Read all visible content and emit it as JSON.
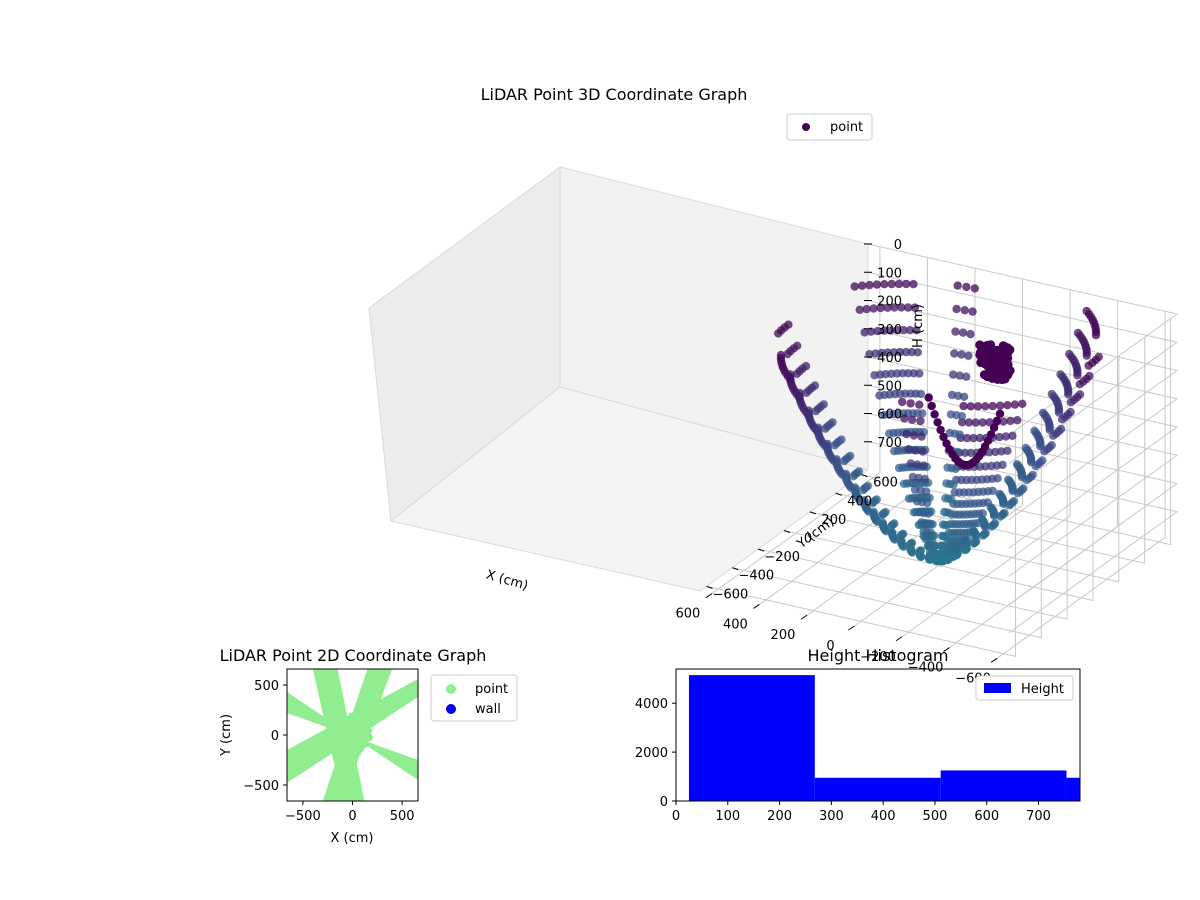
{
  "colors": {
    "point_dark": "#440154",
    "point_mid": "#3b528b",
    "point_low": "#21918c",
    "scatter2d_point": "#90ee90",
    "scatter2d_wall": "#0000ff",
    "hist_bar": "#0000ff"
  },
  "chart_data": [
    {
      "type": "scatter",
      "projection": "3d",
      "title": "LiDAR Point 3D Coordinate Graph",
      "xlabel": "X (cm)",
      "ylabel": "Y (cm)",
      "zlabel": "H (cm)",
      "xticks": [
        "−600",
        "−400",
        "−200",
        "0",
        "200",
        "400",
        "600"
      ],
      "yticks": [
        "−600",
        "−400",
        "−200",
        "0",
        "200",
        "400",
        "600"
      ],
      "zticks": [
        "0",
        "100",
        "200",
        "300",
        "400",
        "500",
        "600",
        "700"
      ],
      "xlim": [
        -650,
        650
      ],
      "ylim": [
        -650,
        650
      ],
      "zlim": [
        0,
        800
      ],
      "z_inverted": true,
      "legend": [
        "point"
      ],
      "legend_position": "upper-right",
      "grid": true,
      "structure": "radial arcs of points around the origin, heights rising from about 750 cm at the centre to near 0 cm at the outer ends, plus a cluster near the top-centre"
    },
    {
      "type": "scatter",
      "title": "LiDAR Point 2D Coordinate Graph",
      "xlabel": "X (cm)",
      "ylabel": "Y (cm)",
      "xticks": [
        "−500",
        "0",
        "500"
      ],
      "yticks": [
        "−500",
        "0",
        "500"
      ],
      "xlim": [
        -660,
        660
      ],
      "ylim": [
        -660,
        660
      ],
      "legend": [
        "point",
        "wall"
      ],
      "legend_position": "outside-right",
      "series": [
        {
          "name": "point",
          "color": "#90ee90",
          "shape": "dense X-shaped cloud through the origin"
        },
        {
          "name": "wall",
          "color": "#0000ff",
          "values": []
        }
      ]
    },
    {
      "type": "bar",
      "subtype": "histogram",
      "title": "Height Histogram",
      "legend": [
        "Height"
      ],
      "legend_position": "upper-right",
      "xticks": [
        "0",
        "100",
        "200",
        "300",
        "400",
        "500",
        "600",
        "700"
      ],
      "yticks": [
        "0",
        "2000",
        "4000"
      ],
      "xlim": [
        0,
        780
      ],
      "ylim": [
        0,
        5400
      ],
      "bins": [
        {
          "start": 25,
          "end": 268,
          "count": 5150
        },
        {
          "start": 268,
          "end": 511,
          "count": 950
        },
        {
          "start": 511,
          "end": 754,
          "count": 1250
        },
        {
          "start": 754,
          "end": 780,
          "count": 950
        }
      ]
    }
  ]
}
